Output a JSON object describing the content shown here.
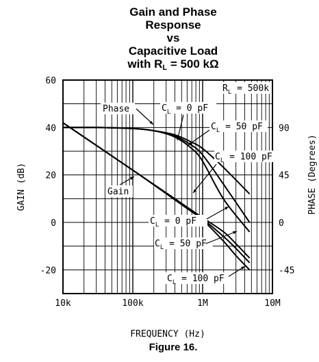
{
  "title": {
    "line1": "Gain and Phase",
    "line2": "Response",
    "line3": "vs",
    "line4": "Capacitive Load",
    "line5_prefix": "with R",
    "line5_sub": "L",
    "line5_suffix": " = 500 kΩ"
  },
  "figure_caption": "Figure 16.",
  "chart_data": {
    "type": "line",
    "title": "Gain and Phase Response vs Capacitive Load with RL = 500 kΩ",
    "xlabel": "FREQUENCY (Hz)",
    "ylabel": "GAIN (dB)",
    "y2label": "PHASE (Degrees)",
    "x_scale": "log",
    "xlim": [
      10000,
      10000000
    ],
    "ylim": [
      -30,
      60
    ],
    "y2lim": [
      -67.5,
      135
    ],
    "x_ticks": [
      10000,
      100000,
      1000000,
      10000000
    ],
    "x_tick_labels": [
      "10k",
      "100k",
      "1M",
      "10M"
    ],
    "y_ticks": [
      -20,
      0,
      20,
      40,
      60
    ],
    "y_tick_labels": [
      "-20",
      "0",
      "20",
      "40",
      "60"
    ],
    "y2_ticks": [
      -45,
      0,
      45,
      90
    ],
    "y2_tick_labels": [
      "-45",
      "0",
      "45",
      "90"
    ],
    "grid": true,
    "series": [
      {
        "name": "Phase",
        "curve": "phase",
        "cl": "C_L = 0 pF",
        "axis": "right",
        "x": [
          10000,
          30000,
          100000,
          200000,
          400000,
          700000,
          1000000,
          2000000,
          4700000
        ],
        "y": [
          90,
          90,
          89,
          87,
          83,
          76,
          70,
          52,
          27
        ]
      },
      {
        "name": "Phase",
        "curve": "phase",
        "cl": "C_L = 50 pF",
        "axis": "right",
        "x": [
          10000,
          30000,
          100000,
          200000,
          400000,
          700000,
          1000000,
          2000000,
          4700000
        ],
        "y": [
          90,
          90,
          89,
          87,
          82,
          73,
          64,
          36,
          0
        ]
      },
      {
        "name": "Phase",
        "curve": "phase",
        "cl": "C_L = 100 pF",
        "axis": "right",
        "x": [
          10000,
          30000,
          100000,
          200000,
          400000,
          700000,
          1000000,
          2000000,
          4700000
        ],
        "y": [
          90,
          90,
          89,
          87,
          81,
          70,
          58,
          22,
          -9
        ]
      },
      {
        "name": "Gain",
        "curve": "gain",
        "cl": "C_L = 0 pF",
        "axis": "left",
        "x": [
          10000,
          100000,
          500000,
          1000000,
          2000000,
          3000000,
          4700000
        ],
        "y": [
          42,
          22,
          8,
          2,
          -4,
          -9,
          -15
        ]
      },
      {
        "name": "Gain",
        "curve": "gain",
        "cl": "C_L = 50 pF",
        "axis": "left",
        "x": [
          10000,
          100000,
          500000,
          1000000,
          2000000,
          3000000,
          4700000
        ],
        "y": [
          42,
          22,
          8,
          1.5,
          -6,
          -11,
          -17
        ]
      },
      {
        "name": "Gain",
        "curve": "gain",
        "cl": "C_L = 100 pF",
        "axis": "left",
        "x": [
          10000,
          100000,
          500000,
          1000000,
          2000000,
          3000000,
          4700000
        ],
        "y": [
          42,
          22,
          7.5,
          1,
          -8,
          -14,
          -20
        ]
      }
    ],
    "annotations": {
      "rl": "500k",
      "phase_label": "Phase",
      "gain_label": "Gain",
      "phase_cl": [
        "0 pF",
        "50 pF",
        "100 pF"
      ],
      "gain_cl": [
        "0 pF",
        "50 pF",
        "100 pF"
      ]
    }
  }
}
